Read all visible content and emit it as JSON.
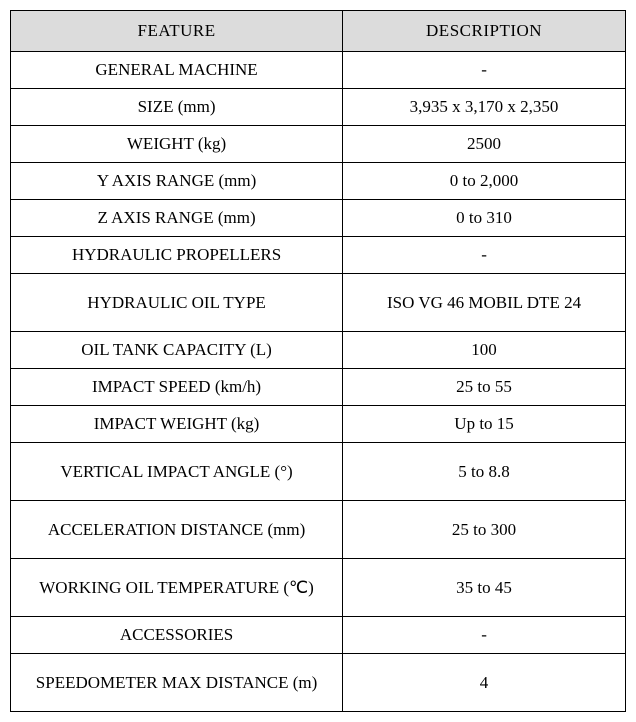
{
  "table": {
    "header": {
      "feature": "FEATURE",
      "description": "DESCRIPTION"
    },
    "columns": {
      "feature_width": "54%",
      "description_width": "46%"
    },
    "rows": [
      {
        "feature": "GENERAL MACHINE",
        "description": "-",
        "feature_multiline": false,
        "desc_multiline": false
      },
      {
        "feature": "SIZE (mm)",
        "description": "3,935 x 3,170 x 2,350",
        "feature_multiline": false,
        "desc_multiline": false
      },
      {
        "feature": "WEIGHT (kg)",
        "description": "2500",
        "feature_multiline": false,
        "desc_multiline": false
      },
      {
        "feature": "Y AXIS RANGE (mm)",
        "description": "0 to 2,000",
        "feature_multiline": false,
        "desc_multiline": false
      },
      {
        "feature": "Z AXIS RANGE (mm)",
        "description": "0 to 310",
        "feature_multiline": false,
        "desc_multiline": false
      },
      {
        "feature": "HYDRAULIC PROPELLERS",
        "description": "-",
        "feature_multiline": false,
        "desc_multiline": false
      },
      {
        "feature": "HYDRAULIC OIL TYPE",
        "description": "ISO VG 46 MOBIL DTE 24",
        "feature_multiline": false,
        "desc_multiline": true
      },
      {
        "feature": "OIL TANK CAPACITY (L)",
        "description": "100",
        "feature_multiline": false,
        "desc_multiline": false
      },
      {
        "feature": "IMPACT SPEED (km/h)",
        "description": "25 to 55",
        "feature_multiline": false,
        "desc_multiline": false
      },
      {
        "feature": "IMPACT WEIGHT (kg)",
        "description": "Up to 15",
        "feature_multiline": false,
        "desc_multiline": false
      },
      {
        "feature": "VERTICAL IMPACT ANGLE (°)",
        "description": "5 to 8.8",
        "feature_multiline": true,
        "desc_multiline": false
      },
      {
        "feature": "ACCELERATION DISTANCE (mm)",
        "description": "25 to 300",
        "feature_multiline": true,
        "desc_multiline": false
      },
      {
        "feature": "WORKING OIL TEMPERATURE (℃)",
        "description": "35 to 45",
        "feature_multiline": true,
        "desc_multiline": false
      },
      {
        "feature": "ACCESSORIES",
        "description": "-",
        "feature_multiline": false,
        "desc_multiline": false
      },
      {
        "feature": "SPEEDOMETER MAX DISTANCE (m)",
        "description": "4",
        "feature_multiline": true,
        "desc_multiline": false
      }
    ],
    "styles": {
      "background_color": "#ffffff",
      "header_bg": "#dcdcdc",
      "border_color": "#000000",
      "text_color": "#000000",
      "font_size": 17,
      "header_font_size": 17,
      "font_family": "Georgia, 'Times New Roman', serif"
    }
  }
}
